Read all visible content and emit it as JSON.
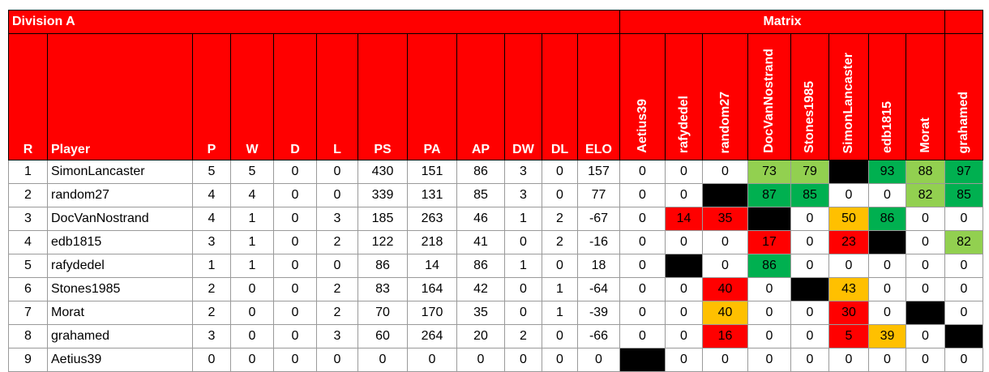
{
  "header": {
    "title": "Division A",
    "matrix_title": "Matrix"
  },
  "table": {
    "columns": [
      "R",
      "Player",
      "P",
      "W",
      "D",
      "L",
      "PS",
      "PA",
      "AP",
      "DW",
      "DL",
      "ELO",
      "Aetius39",
      "rafydedel",
      "random27",
      "DocVanNostrand",
      "Stones1985",
      "SimonLancaster",
      "edb1815",
      "Morat",
      "grahamed"
    ],
    "rows": [
      [
        1,
        "SimonLancaster",
        5,
        5,
        0,
        0,
        430,
        151,
        86,
        3,
        0,
        157,
        0,
        0,
        0,
        73,
        79,
        null,
        93,
        88,
        97
      ],
      [
        2,
        "random27",
        4,
        4,
        0,
        0,
        339,
        131,
        85,
        3,
        0,
        77,
        0,
        0,
        null,
        87,
        85,
        0,
        0,
        82,
        85
      ],
      [
        3,
        "DocVanNostrand",
        4,
        1,
        0,
        3,
        185,
        263,
        46,
        1,
        2,
        -67,
        0,
        14,
        35,
        null,
        0,
        50,
        86,
        0,
        0
      ],
      [
        4,
        "edb1815",
        3,
        1,
        0,
        2,
        122,
        218,
        41,
        0,
        2,
        -16,
        0,
        0,
        0,
        17,
        0,
        23,
        null,
        0,
        82
      ],
      [
        5,
        "rafydedel",
        1,
        1,
        0,
        0,
        86,
        14,
        86,
        1,
        0,
        18,
        0,
        null,
        0,
        86,
        0,
        0,
        0,
        0,
        0
      ],
      [
        6,
        "Stones1985",
        2,
        0,
        0,
        2,
        83,
        164,
        42,
        0,
        1,
        -64,
        0,
        0,
        40,
        0,
        null,
        43,
        0,
        0,
        0
      ],
      [
        7,
        "Morat",
        2,
        0,
        0,
        2,
        70,
        170,
        35,
        0,
        1,
        -39,
        0,
        0,
        40,
        0,
        0,
        30,
        0,
        null,
        0
      ],
      [
        8,
        "grahamed",
        3,
        0,
        0,
        3,
        60,
        264,
        20,
        2,
        0,
        -66,
        0,
        0,
        16,
        0,
        0,
        5,
        39,
        0,
        null
      ],
      [
        9,
        "Aetius39",
        0,
        0,
        0,
        0,
        0,
        0,
        0,
        0,
        0,
        0,
        null,
        0,
        0,
        0,
        0,
        0,
        0,
        0,
        0
      ]
    ],
    "fills": [
      [
        null,
        null,
        null,
        "#92d050",
        "#92d050",
        "#000000",
        "#00b050",
        "#92d050",
        "#00b050"
      ],
      [
        null,
        null,
        "#000000",
        "#00b050",
        "#00b050",
        null,
        null,
        "#92d050",
        "#00b050"
      ],
      [
        null,
        "#ff0000",
        "#ff0000",
        "#000000",
        null,
        "#ffc000",
        "#00b050",
        null,
        null
      ],
      [
        null,
        null,
        null,
        "#ff0000",
        null,
        "#ff0000",
        "#000000",
        null,
        "#92d050"
      ],
      [
        null,
        "#000000",
        null,
        "#00b050",
        null,
        null,
        null,
        null,
        null
      ],
      [
        null,
        null,
        "#ff0000",
        null,
        "#000000",
        "#ffc000",
        null,
        null,
        null
      ],
      [
        null,
        null,
        "#ffc000",
        null,
        null,
        "#ff0000",
        null,
        "#000000",
        null
      ],
      [
        null,
        null,
        "#ff0000",
        null,
        null,
        "#ff0000",
        "#ffc000",
        null,
        "#000000"
      ],
      [
        "#000000",
        null,
        null,
        null,
        null,
        null,
        null,
        null,
        null
      ]
    ]
  }
}
